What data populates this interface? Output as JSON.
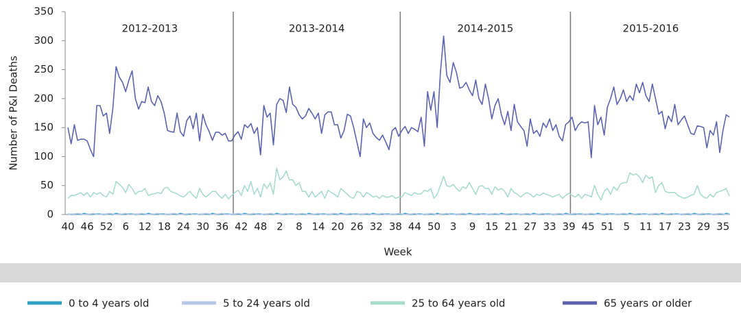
{
  "chart_data": {
    "type": "line",
    "ylabel": "Number of P&I Deaths",
    "xlabel": "Week",
    "seasons": [
      "2012-2013",
      "2013-2014",
      "2014-2015",
      "2015-2016"
    ],
    "ylim": [
      0,
      350
    ],
    "yticks": [
      0,
      50,
      100,
      150,
      200,
      250,
      300,
      350
    ],
    "categories": [
      "40",
      null,
      null,
      null,
      null,
      null,
      "46",
      null,
      null,
      null,
      null,
      null,
      "52",
      null,
      null,
      null,
      null,
      null,
      "6",
      null,
      null,
      null,
      null,
      null,
      "12",
      null,
      null,
      null,
      null,
      null,
      "18",
      null,
      null,
      null,
      null,
      null,
      "24",
      null,
      null,
      null,
      null,
      null,
      "30",
      null,
      null,
      null,
      null,
      null,
      "36",
      null,
      null,
      null,
      null,
      null,
      "42",
      null,
      null,
      null,
      null,
      null,
      "48",
      null,
      null,
      null,
      null,
      null,
      "2",
      null,
      null,
      null,
      null,
      null,
      "8",
      null,
      null,
      null,
      null,
      null,
      "14",
      null,
      null,
      null,
      null,
      null,
      "20",
      null,
      null,
      null,
      null,
      null,
      "26",
      null,
      null,
      null,
      null,
      null,
      "32",
      null,
      null,
      null,
      null,
      null,
      "38",
      null,
      null,
      null,
      null,
      null,
      "44",
      null,
      null,
      null,
      null,
      null,
      "50",
      null,
      null,
      null,
      null,
      null,
      "3",
      null,
      null,
      null,
      null,
      null,
      "9",
      null,
      null,
      null,
      null,
      null,
      "15",
      null,
      null,
      null,
      null,
      null,
      "21",
      null,
      null,
      null,
      null,
      null,
      "27",
      null,
      null,
      null,
      null,
      null,
      "33",
      null,
      null,
      null,
      null,
      null,
      "39",
      null,
      null,
      null,
      null,
      null,
      "45",
      null,
      null,
      null,
      null,
      null,
      "51",
      null,
      null,
      null,
      null,
      null,
      "5",
      null,
      null,
      null,
      null,
      null,
      "11",
      null,
      null,
      null,
      null,
      null,
      "17",
      null,
      null,
      null,
      null,
      null,
      "23",
      null,
      null,
      null,
      null,
      null,
      "29",
      null,
      null,
      null,
      null,
      null,
      "35",
      null,
      null
    ],
    "series": [
      {
        "name": "0 to 4 years old",
        "color": "#2e9fc0",
        "values": [
          1,
          0,
          1,
          1,
          0,
          2,
          1,
          0,
          1,
          1,
          1,
          0,
          1,
          1,
          0,
          2,
          1,
          0,
          1,
          1,
          1,
          0,
          1,
          1,
          0,
          2,
          1,
          0,
          1,
          1,
          1,
          0,
          1,
          1,
          0,
          2,
          1,
          0,
          1,
          1,
          1,
          0,
          1,
          1,
          0,
          2,
          1,
          0,
          1,
          1,
          1,
          0,
          1,
          1,
          0,
          2,
          1,
          0,
          1,
          1,
          1,
          0,
          1,
          1,
          0,
          2,
          1,
          0,
          1,
          1,
          1,
          0,
          1,
          1,
          0,
          2,
          1,
          0,
          1,
          1,
          1,
          0,
          1,
          1,
          0,
          2,
          1,
          0,
          1,
          1,
          1,
          0,
          1,
          1,
          0,
          2,
          1,
          0,
          1,
          1,
          1,
          0,
          1,
          1,
          0,
          2,
          1,
          0,
          1,
          1,
          1,
          0,
          1,
          1,
          0,
          2,
          1,
          0,
          1,
          1,
          1,
          0,
          1,
          1,
          0,
          2,
          1,
          0,
          1,
          1,
          1,
          0,
          1,
          1,
          0,
          2,
          1,
          0,
          1,
          1,
          1,
          0,
          1,
          1,
          0,
          2,
          1,
          0,
          1,
          1,
          1,
          0,
          1,
          1,
          0,
          2,
          1,
          0,
          1,
          1,
          1,
          0,
          1,
          1,
          0,
          2,
          1,
          0,
          1,
          1,
          1,
          0,
          1,
          1,
          0,
          2,
          1,
          0,
          1,
          1,
          1,
          0,
          1,
          1,
          0,
          2,
          1,
          0,
          1,
          1,
          1,
          0,
          1,
          1,
          0,
          2,
          1,
          0,
          1,
          1,
          1,
          0,
          1,
          1,
          0,
          2,
          1
        ]
      },
      {
        "name": "5 to 24 years old",
        "color": "#b4c7e7",
        "values": [
          0,
          1,
          1,
          2,
          1,
          0,
          1,
          1,
          2,
          0,
          0,
          1,
          1,
          2,
          1,
          0,
          1,
          1,
          2,
          0,
          0,
          1,
          1,
          2,
          1,
          0,
          1,
          1,
          2,
          0,
          0,
          1,
          1,
          2,
          1,
          0,
          1,
          1,
          2,
          0,
          0,
          1,
          1,
          2,
          1,
          0,
          1,
          1,
          2,
          0,
          0,
          1,
          1,
          2,
          1,
          0,
          1,
          1,
          2,
          0,
          0,
          1,
          1,
          2,
          1,
          0,
          1,
          1,
          2,
          0,
          0,
          1,
          1,
          2,
          1,
          0,
          1,
          1,
          2,
          0,
          0,
          1,
          1,
          2,
          1,
          0,
          1,
          1,
          2,
          0,
          0,
          1,
          1,
          2,
          1,
          0,
          1,
          1,
          2,
          0,
          0,
          1,
          1,
          2,
          1,
          0,
          1,
          1,
          2,
          0,
          0,
          1,
          1,
          2,
          1,
          0,
          1,
          1,
          2,
          0,
          0,
          1,
          1,
          2,
          1,
          0,
          1,
          1,
          2,
          0,
          0,
          1,
          1,
          2,
          1,
          0,
          1,
          1,
          2,
          0,
          0,
          1,
          1,
          2,
          1,
          0,
          1,
          1,
          2,
          0,
          0,
          1,
          1,
          2,
          1,
          0,
          1,
          1,
          2,
          0,
          0,
          1,
          1,
          2,
          1,
          0,
          1,
          1,
          2,
          0,
          0,
          1,
          1,
          2,
          1,
          0,
          1,
          1,
          2,
          0,
          0,
          1,
          1,
          2,
          1,
          0,
          1,
          1,
          2,
          0,
          0,
          1,
          1,
          2,
          1,
          0,
          1,
          1,
          2,
          0,
          0,
          1,
          1,
          2,
          1,
          0,
          1
        ]
      },
      {
        "name": "25 to 64 years old",
        "color": "#a8dcc8",
        "values": [
          28,
          33,
          33,
          35,
          38,
          33,
          38,
          30,
          38,
          35,
          38,
          33,
          30,
          40,
          35,
          57,
          52,
          47,
          38,
          52,
          45,
          35,
          40,
          40,
          45,
          33,
          35,
          36,
          38,
          36,
          45,
          47,
          40,
          38,
          36,
          32,
          30,
          35,
          40,
          33,
          28,
          45,
          35,
          30,
          35,
          40,
          40,
          33,
          28,
          35,
          27,
          33,
          38,
          42,
          33,
          50,
          40,
          57,
          35,
          45,
          30,
          53,
          45,
          55,
          35,
          80,
          60,
          65,
          75,
          60,
          60,
          50,
          55,
          40,
          40,
          30,
          40,
          30,
          35,
          40,
          28,
          42,
          38,
          35,
          30,
          45,
          40,
          35,
          30,
          28,
          40,
          38,
          30,
          38,
          35,
          30,
          32,
          28,
          33,
          30,
          30,
          33,
          28,
          30,
          30,
          38,
          35,
          33,
          38,
          35,
          36,
          42,
          40,
          45,
          28,
          35,
          50,
          66,
          50,
          48,
          52,
          45,
          40,
          48,
          45,
          55,
          45,
          35,
          48,
          50,
          45,
          45,
          35,
          48,
          42,
          45,
          40,
          30,
          45,
          38,
          35,
          30,
          35,
          38,
          35,
          30,
          35,
          33,
          37,
          35,
          33,
          30,
          33,
          35,
          28,
          33,
          37,
          33,
          30,
          35,
          28,
          35,
          33,
          30,
          50,
          35,
          25,
          40,
          45,
          35,
          48,
          42,
          52,
          55,
          55,
          72,
          68,
          70,
          65,
          55,
          68,
          62,
          65,
          38,
          50,
          55,
          40,
          38,
          38,
          38,
          33,
          30,
          28,
          30,
          33,
          35,
          50,
          35,
          30,
          28,
          35,
          30,
          38,
          40,
          42,
          45,
          32
        ]
      },
      {
        "name": "65 years or older",
        "color": "#5b63ad",
        "values": [
          150,
          122,
          155,
          128,
          130,
          130,
          127,
          112,
          100,
          188,
          188,
          170,
          175,
          140,
          183,
          255,
          237,
          228,
          212,
          232,
          248,
          200,
          182,
          195,
          193,
          220,
          195,
          188,
          205,
          195,
          175,
          145,
          143,
          142,
          175,
          143,
          135,
          162,
          170,
          148,
          175,
          127,
          173,
          155,
          143,
          128,
          142,
          142,
          137,
          140,
          127,
          127,
          137,
          143,
          130,
          155,
          150,
          157,
          140,
          150,
          103,
          188,
          168,
          175,
          120,
          190,
          200,
          197,
          176,
          220,
          190,
          185,
          172,
          165,
          170,
          183,
          175,
          165,
          175,
          140,
          172,
          177,
          177,
          155,
          155,
          132,
          145,
          173,
          170,
          150,
          125,
          100,
          165,
          150,
          158,
          140,
          133,
          128,
          137,
          125,
          112,
          145,
          150,
          135,
          145,
          152,
          140,
          150,
          147,
          143,
          168,
          118,
          212,
          180,
          212,
          150,
          245,
          308,
          240,
          228,
          262,
          245,
          218,
          220,
          228,
          215,
          205,
          232,
          200,
          190,
          225,
          200,
          165,
          188,
          200,
          172,
          155,
          178,
          145,
          190,
          160,
          152,
          145,
          118,
          165,
          140,
          145,
          135,
          158,
          150,
          165,
          145,
          155,
          135,
          127,
          155,
          160,
          168,
          145,
          155,
          160,
          158,
          160,
          98,
          188,
          155,
          168,
          137,
          185,
          200,
          220,
          190,
          200,
          215,
          195,
          205,
          197,
          225,
          210,
          228,
          205,
          195,
          225,
          200,
          173,
          178,
          148,
          170,
          160,
          190,
          155,
          163,
          170,
          155,
          140,
          138,
          153,
          152,
          150,
          115,
          145,
          137,
          160,
          107,
          145,
          172,
          168
        ]
      }
    ]
  }
}
